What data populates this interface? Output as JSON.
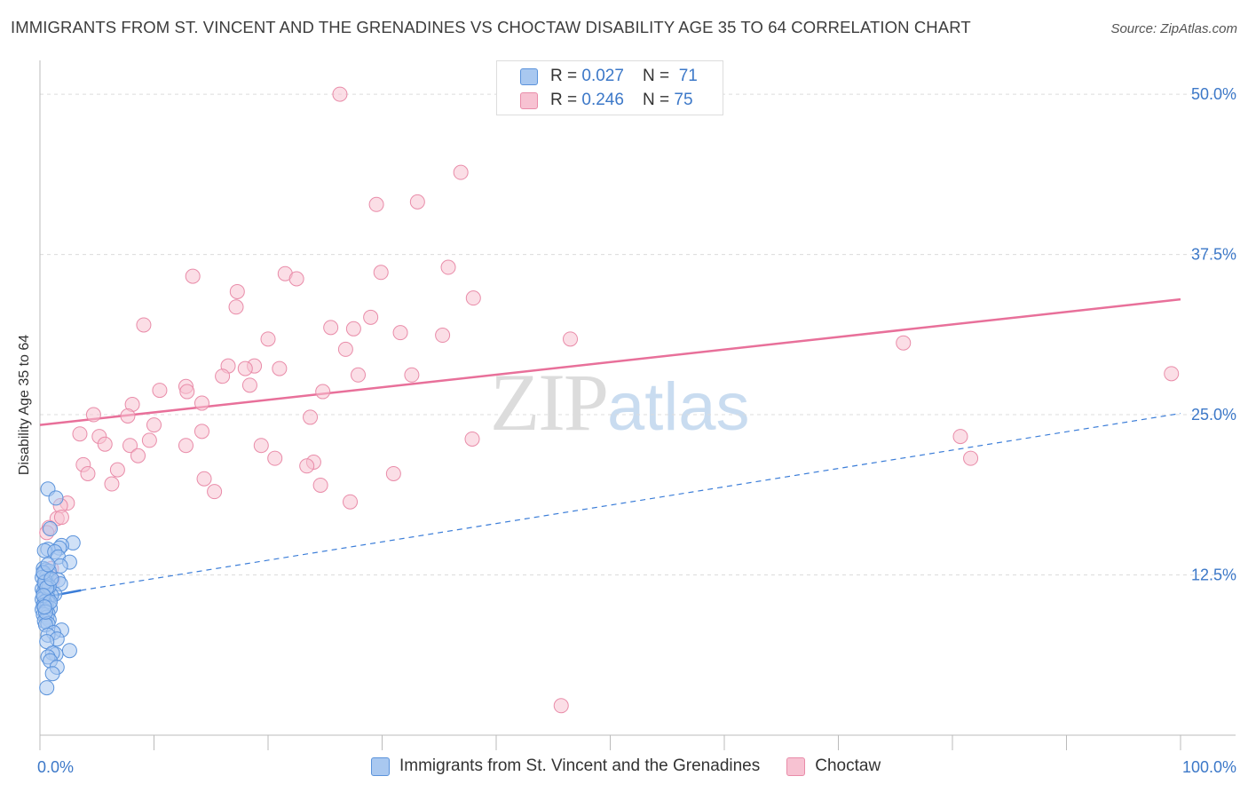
{
  "title": "IMMIGRANTS FROM ST. VINCENT AND THE GRENADINES VS CHOCTAW DISABILITY AGE 35 TO 64 CORRELATION CHART",
  "source": "Source: ZipAtlas.com",
  "watermark": {
    "zip": "ZIP",
    "atlas": "atlas"
  },
  "legend": {
    "rows": [
      {
        "r_label": "R = ",
        "r_value": "0.027",
        "n_label": "N = ",
        "n_value": "71"
      },
      {
        "r_label": "R = ",
        "r_value": "0.246",
        "n_label": "N = ",
        "n_value": "75"
      }
    ]
  },
  "bottom_legend": {
    "series1": "Immigrants from St. Vincent and the Grenadines",
    "series2": "Choctaw"
  },
  "colors": {
    "blue_fill": "#a9c8f0",
    "blue_stroke": "#5b93db",
    "blue_line": "#3b7dd8",
    "pink_fill": "#f7c2d2",
    "pink_stroke": "#e98ca9",
    "pink_line": "#e8709a",
    "tick_text": "#3c78c8",
    "grid": "#dcdcdc"
  },
  "chart_data": {
    "type": "scatter",
    "title": "IMMIGRANTS FROM ST. VINCENT AND THE GRENADINES VS CHOCTAW DISABILITY AGE 35 TO 64 CORRELATION CHART",
    "xlabel": "",
    "ylabel": "Disability Age 35 to 64",
    "xlim": [
      0,
      100
    ],
    "ylim": [
      0,
      52.5
    ],
    "x_tick_labels": [
      {
        "value": 0,
        "label": "0.0%"
      },
      {
        "value": 100,
        "label": "100.0%"
      }
    ],
    "y_tick_labels": [
      {
        "value": 12.5,
        "label": "12.5%"
      },
      {
        "value": 25,
        "label": "25.0%"
      },
      {
        "value": 37.5,
        "label": "37.5%"
      },
      {
        "value": 50,
        "label": "50.0%"
      }
    ],
    "x_minor_ticks": [
      0,
      10,
      20,
      30,
      40,
      50,
      60,
      70,
      80,
      90,
      100
    ],
    "series": [
      {
        "name": "Immigrants from St. Vincent and the Grenadines",
        "R": 0.027,
        "N": 71,
        "trend_solid": {
          "x": [
            0,
            3.6
          ],
          "y": [
            10.7,
            11.3
          ]
        },
        "trend_dashed": {
          "x": [
            3.6,
            100
          ],
          "y": [
            11.3,
            25.1
          ]
        },
        "points": [
          [
            0.7,
            19.2
          ],
          [
            1.4,
            18.5
          ],
          [
            0.9,
            16.1
          ],
          [
            2.9,
            15.0
          ],
          [
            1.9,
            14.8
          ],
          [
            1.7,
            14.6
          ],
          [
            0.7,
            14.5
          ],
          [
            0.4,
            14.4
          ],
          [
            1.3,
            14.3
          ],
          [
            1.6,
            13.9
          ],
          [
            2.6,
            13.5
          ],
          [
            1.8,
            13.2
          ],
          [
            0.3,
            13.0
          ],
          [
            0.5,
            12.9
          ],
          [
            0.8,
            12.8
          ],
          [
            0.3,
            12.6
          ],
          [
            0.6,
            12.4
          ],
          [
            0.2,
            12.3
          ],
          [
            0.9,
            12.1
          ],
          [
            1.6,
            12.1
          ],
          [
            1.8,
            11.8
          ],
          [
            0.4,
            11.7
          ],
          [
            0.2,
            11.4
          ],
          [
            0.7,
            11.3
          ],
          [
            0.5,
            11.2
          ],
          [
            0.3,
            11.1
          ],
          [
            1.3,
            11.0
          ],
          [
            1.0,
            10.9
          ],
          [
            0.4,
            10.8
          ],
          [
            0.7,
            10.7
          ],
          [
            0.2,
            10.6
          ],
          [
            0.6,
            10.5
          ],
          [
            0.4,
            10.4
          ],
          [
            0.8,
            10.3
          ],
          [
            0.5,
            10.2
          ],
          [
            0.3,
            10.1
          ],
          [
            0.6,
            10.0
          ],
          [
            0.9,
            9.9
          ],
          [
            0.2,
            9.8
          ],
          [
            0.5,
            9.7
          ],
          [
            0.7,
            9.5
          ],
          [
            0.3,
            9.4
          ],
          [
            0.6,
            9.2
          ],
          [
            0.8,
            9.0
          ],
          [
            0.4,
            8.9
          ],
          [
            0.7,
            8.7
          ],
          [
            0.5,
            8.6
          ],
          [
            1.9,
            8.2
          ],
          [
            1.2,
            8.0
          ],
          [
            0.7,
            7.8
          ],
          [
            1.5,
            7.5
          ],
          [
            0.6,
            7.3
          ],
          [
            2.6,
            6.6
          ],
          [
            1.4,
            6.3
          ],
          [
            1.1,
            6.4
          ],
          [
            0.7,
            6.1
          ],
          [
            0.9,
            5.8
          ],
          [
            1.5,
            5.3
          ],
          [
            1.1,
            4.8
          ],
          [
            0.6,
            3.7
          ],
          [
            0.5,
            12.0
          ],
          [
            0.8,
            11.6
          ],
          [
            0.4,
            11.9
          ],
          [
            0.6,
            11.5
          ],
          [
            0.3,
            10.9
          ],
          [
            0.9,
            10.4
          ],
          [
            0.5,
            9.6
          ],
          [
            0.3,
            12.7
          ],
          [
            0.7,
            13.3
          ],
          [
            1.0,
            12.2
          ],
          [
            0.4,
            10.0
          ]
        ]
      },
      {
        "name": "Choctaw",
        "R": 0.246,
        "N": 75,
        "trend": {
          "x": [
            0,
            100
          ],
          "y": [
            24.2,
            34.0
          ]
        },
        "points": [
          [
            26.3,
            50.0
          ],
          [
            36.9,
            43.9
          ],
          [
            33.1,
            41.6
          ],
          [
            29.5,
            41.4
          ],
          [
            29.9,
            36.1
          ],
          [
            35.8,
            36.5
          ],
          [
            21.5,
            36.0
          ],
          [
            22.5,
            35.6
          ],
          [
            13.4,
            35.8
          ],
          [
            17.3,
            34.6
          ],
          [
            38.0,
            34.1
          ],
          [
            29.0,
            32.6
          ],
          [
            17.2,
            33.4
          ],
          [
            9.1,
            32.0
          ],
          [
            25.5,
            31.8
          ],
          [
            27.5,
            31.7
          ],
          [
            31.6,
            31.4
          ],
          [
            35.3,
            31.2
          ],
          [
            46.5,
            30.9
          ],
          [
            75.7,
            30.6
          ],
          [
            20.0,
            30.9
          ],
          [
            26.8,
            30.1
          ],
          [
            16.5,
            28.8
          ],
          [
            18.8,
            28.8
          ],
          [
            18.0,
            28.6
          ],
          [
            21.0,
            28.6
          ],
          [
            27.9,
            28.1
          ],
          [
            32.6,
            28.1
          ],
          [
            99.2,
            28.2
          ],
          [
            16.0,
            28.0
          ],
          [
            18.4,
            27.3
          ],
          [
            12.8,
            27.2
          ],
          [
            10.5,
            26.9
          ],
          [
            12.9,
            26.8
          ],
          [
            24.8,
            26.8
          ],
          [
            14.2,
            25.9
          ],
          [
            8.1,
            25.8
          ],
          [
            4.7,
            25.0
          ],
          [
            7.7,
            24.9
          ],
          [
            23.7,
            24.8
          ],
          [
            10.0,
            24.2
          ],
          [
            14.2,
            23.7
          ],
          [
            5.2,
            23.3
          ],
          [
            3.5,
            23.5
          ],
          [
            9.6,
            23.0
          ],
          [
            7.9,
            22.6
          ],
          [
            5.7,
            22.7
          ],
          [
            12.8,
            22.6
          ],
          [
            80.7,
            23.3
          ],
          [
            37.9,
            23.1
          ],
          [
            19.4,
            22.6
          ],
          [
            8.6,
            21.8
          ],
          [
            20.6,
            21.6
          ],
          [
            24.0,
            21.3
          ],
          [
            23.4,
            21.0
          ],
          [
            3.8,
            21.1
          ],
          [
            6.8,
            20.7
          ],
          [
            4.2,
            20.4
          ],
          [
            31.0,
            20.4
          ],
          [
            14.4,
            20.0
          ],
          [
            6.3,
            19.6
          ],
          [
            24.6,
            19.5
          ],
          [
            15.3,
            19.0
          ],
          [
            27.2,
            18.2
          ],
          [
            81.6,
            21.6
          ],
          [
            2.4,
            18.1
          ],
          [
            1.8,
            17.9
          ],
          [
            1.5,
            16.9
          ],
          [
            1.9,
            17.0
          ],
          [
            0.8,
            16.2
          ],
          [
            0.6,
            15.8
          ],
          [
            1.0,
            13.0
          ],
          [
            45.7,
            2.3
          ],
          [
            0.7,
            12.3
          ],
          [
            1.1,
            12.1
          ]
        ]
      }
    ]
  }
}
